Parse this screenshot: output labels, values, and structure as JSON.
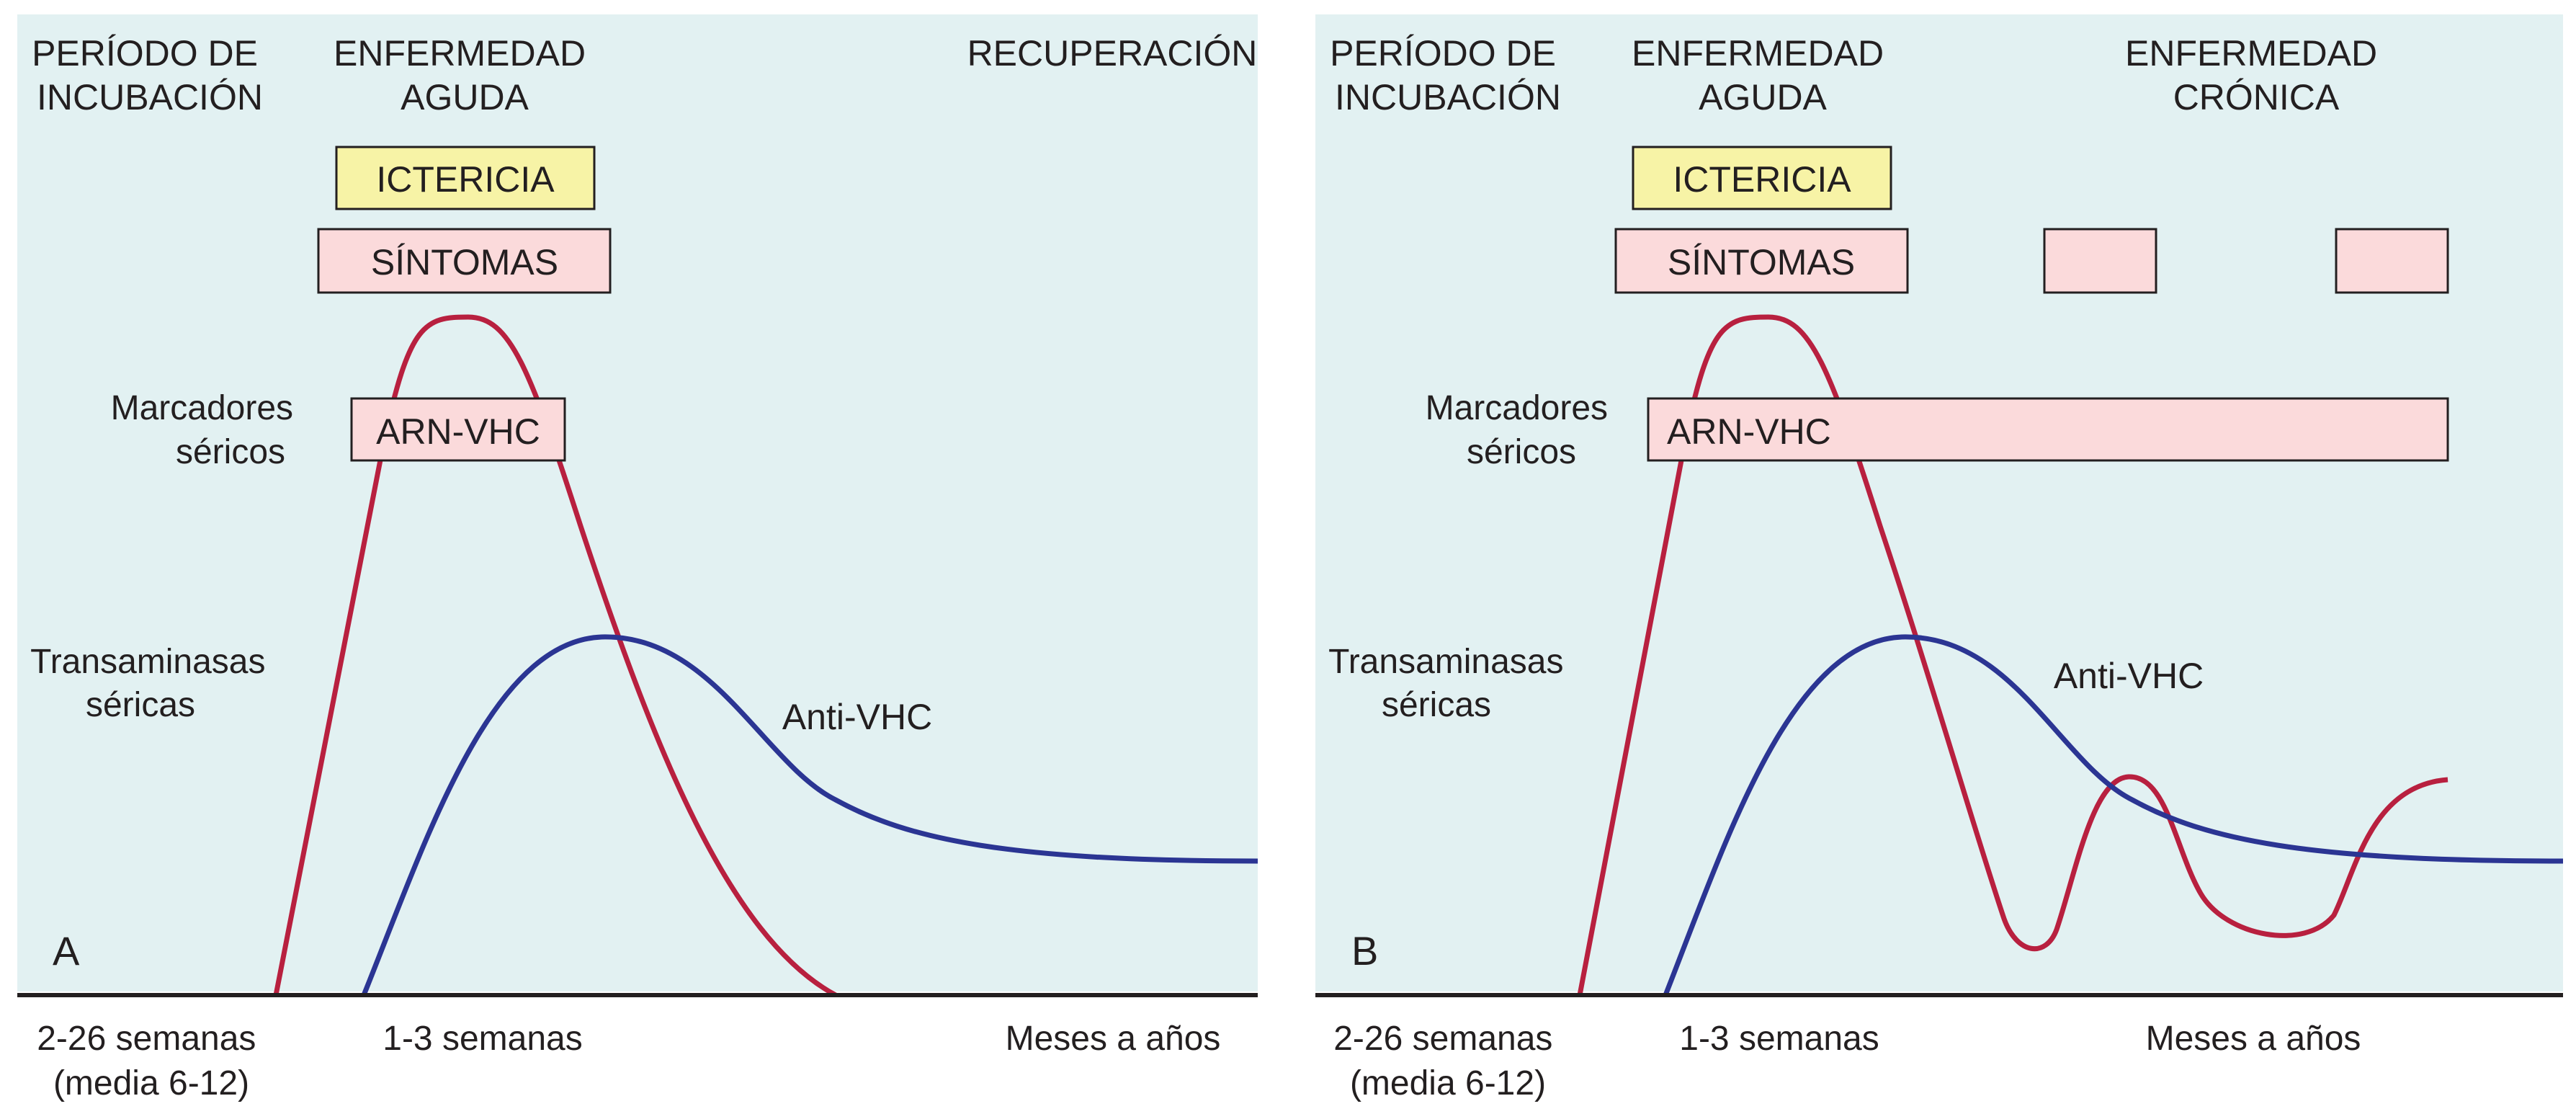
{
  "colors": {
    "background": "#e2f1f2",
    "ictericia_fill": "#f7f3a6",
    "sintomas_fill": "#fbdadb",
    "transaminasas_line": "#b8203f",
    "anti_vhc_line": "#2b3593",
    "axis": "#231f20"
  },
  "chart_data": [
    {
      "type": "line",
      "panel_label": "A",
      "phases": [
        "PERÍODO DE INCUBACIÓN",
        "ENFERMEDAD AGUDA",
        "RECUPERACIÓN"
      ],
      "phase_lines": {
        "incubacion": [
          "PERÍODO DE",
          "INCUBACIÓN"
        ],
        "aguda": [
          "ENFERMEDAD",
          "AGUDA"
        ],
        "recuperacion": [
          "RECUPERACIÓN"
        ]
      },
      "bars": {
        "ictericia": "ICTERICIA",
        "sintomas": "SÍNTOMAS",
        "arn": "ARN-VHC"
      },
      "markers_label": [
        "Marcadores",
        "séricos"
      ],
      "transaminasas_label": [
        "Transaminasas",
        "séricas"
      ],
      "anti_vhc_label": "Anti-VHC",
      "x_tick_labels": {
        "incubacion": [
          "2-26 semanas",
          "(media 6-12)"
        ],
        "aguda": "1-3 semanas",
        "tardio": "Meses a años"
      },
      "series": [
        {
          "key": "transaminasas",
          "pattern": "single peak returning to baseline"
        },
        {
          "key": "anti_vhc",
          "pattern": "rise then decline to persistent low plateau"
        }
      ]
    },
    {
      "type": "line",
      "panel_label": "B",
      "phases": [
        "PERÍODO DE INCUBACIÓN",
        "ENFERMEDAD AGUDA",
        "ENFERMEDAD CRÓNICA"
      ],
      "phase_lines": {
        "incubacion": [
          "PERÍODO DE",
          "INCUBACIÓN"
        ],
        "aguda": [
          "ENFERMEDAD",
          "AGUDA"
        ],
        "cronica": [
          "ENFERMEDAD",
          "CRÓNICA"
        ]
      },
      "bars": {
        "ictericia": "ICTERICIA",
        "sintomas": "SÍNTOMAS",
        "arn": "ARN-VHC"
      },
      "markers_label": [
        "Marcadores",
        "séricos"
      ],
      "transaminasas_label": [
        "Transaminasas",
        "séricas"
      ],
      "anti_vhc_label": "Anti-VHC",
      "x_tick_labels": {
        "incubacion": [
          "2-26 semanas",
          "(media 6-12)"
        ],
        "aguda": "1-3 semanas",
        "tardio": "Meses a años"
      },
      "series": [
        {
          "key": "transaminasas",
          "pattern": "peak then fluctuating elevations"
        },
        {
          "key": "anti_vhc",
          "pattern": "rise then decline to persistent low plateau"
        }
      ]
    }
  ]
}
